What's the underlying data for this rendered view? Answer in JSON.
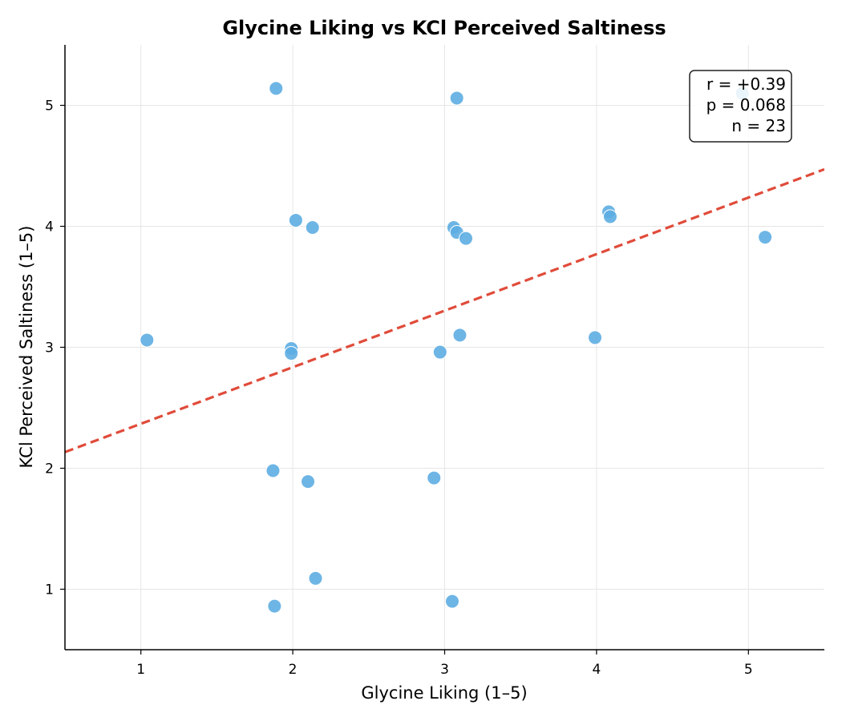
{
  "chart_data": {
    "type": "scatter",
    "title": "Glycine Liking vs KCl Perceived Saltiness",
    "xlabel": "Glycine Liking (1–5)",
    "ylabel": "KCl Perceived Saltiness (1–5)",
    "xlim": [
      0.5,
      5.5
    ],
    "ylim": [
      0.5,
      5.5
    ],
    "x_ticks": [
      1,
      2,
      3,
      4,
      5
    ],
    "y_ticks": [
      1,
      2,
      3,
      4,
      5
    ],
    "grid": true,
    "point_color": "#5DADE2",
    "line_color": "#E04B3A",
    "points": [
      {
        "x": 1.89,
        "y": 5.14
      },
      {
        "x": 3.08,
        "y": 5.06
      },
      {
        "x": 4.96,
        "y": 5.1
      },
      {
        "x": 2.02,
        "y": 4.05
      },
      {
        "x": 2.13,
        "y": 3.99
      },
      {
        "x": 3.06,
        "y": 3.99
      },
      {
        "x": 3.08,
        "y": 3.95
      },
      {
        "x": 3.14,
        "y": 3.9
      },
      {
        "x": 4.08,
        "y": 4.12
      },
      {
        "x": 4.09,
        "y": 4.08
      },
      {
        "x": 5.11,
        "y": 3.91
      },
      {
        "x": 1.04,
        "y": 3.06
      },
      {
        "x": 1.99,
        "y": 2.99
      },
      {
        "x": 1.99,
        "y": 2.95
      },
      {
        "x": 2.97,
        "y": 2.96
      },
      {
        "x": 3.1,
        "y": 3.1
      },
      {
        "x": 3.99,
        "y": 3.08
      },
      {
        "x": 1.87,
        "y": 1.98
      },
      {
        "x": 2.1,
        "y": 1.89
      },
      {
        "x": 2.93,
        "y": 1.92
      },
      {
        "x": 2.15,
        "y": 1.09
      },
      {
        "x": 1.88,
        "y": 0.86
      },
      {
        "x": 3.05,
        "y": 0.9
      }
    ],
    "regression": {
      "slope": 0.4675,
      "intercept": 1.9
    },
    "stats_box": {
      "position": "top-right",
      "lines": [
        "r = +0.39",
        "p = 0.068",
        "n = 23"
      ]
    }
  }
}
